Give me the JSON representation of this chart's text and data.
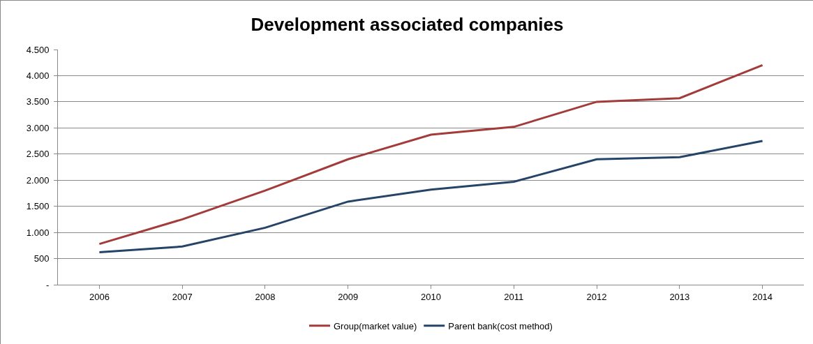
{
  "chart_data": {
    "type": "line",
    "title": "Development associated companies",
    "categories": [
      "2006",
      "2007",
      "2008",
      "2009",
      "2010",
      "2011",
      "2012",
      "2013",
      "2014"
    ],
    "series": [
      {
        "name": "Group(market value)",
        "color": "#a33b3a",
        "values": [
          780,
          1250,
          1800,
          2400,
          2870,
          3020,
          3500,
          3570,
          4200
        ]
      },
      {
        "name": "Parent bank(cost method)",
        "color": "#264468",
        "values": [
          620,
          730,
          1090,
          1590,
          1820,
          1970,
          2400,
          2440,
          2750
        ]
      }
    ],
    "ylim": [
      0,
      4500
    ],
    "yticks": [
      {
        "value": 0,
        "label": "-"
      },
      {
        "value": 500,
        "label": "500"
      },
      {
        "value": 1000,
        "label": "1.000"
      },
      {
        "value": 1500,
        "label": "1.500"
      },
      {
        "value": 2000,
        "label": "2.000"
      },
      {
        "value": 2500,
        "label": "2.500"
      },
      {
        "value": 3000,
        "label": "3.000"
      },
      {
        "value": 3500,
        "label": "3.500"
      },
      {
        "value": 4000,
        "label": "4.000"
      },
      {
        "value": 4500,
        "label": "4.500"
      }
    ],
    "grid": "y",
    "legend": "bottom",
    "marker": "none",
    "line_style": "solid"
  }
}
